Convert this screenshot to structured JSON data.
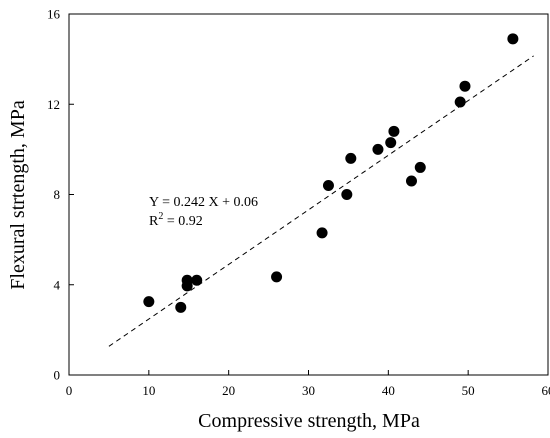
{
  "chart_data": {
    "type": "scatter",
    "title": "",
    "xlabel": "Compressive strength, MPa",
    "ylabel": "Flexural strtength, MPa",
    "xlim": [
      0,
      60
    ],
    "ylim": [
      0,
      16
    ],
    "x_ticks": [
      "0",
      "10",
      "20",
      "30",
      "40",
      "50",
      "60"
    ],
    "y_ticks": [
      "0",
      "4",
      "8",
      "12",
      "16"
    ],
    "grid": false,
    "series": [
      {
        "points": [
          {
            "x": 10.0,
            "y": 3.25
          },
          {
            "x": 14.0,
            "y": 3.0
          },
          {
            "x": 14.8,
            "y": 4.2
          },
          {
            "x": 14.8,
            "y": 3.95
          },
          {
            "x": 16.0,
            "y": 4.2
          },
          {
            "x": 26.0,
            "y": 4.35
          },
          {
            "x": 31.7,
            "y": 6.3
          },
          {
            "x": 32.5,
            "y": 8.4
          },
          {
            "x": 34.8,
            "y": 8.0
          },
          {
            "x": 35.3,
            "y": 9.6
          },
          {
            "x": 38.7,
            "y": 10.0
          },
          {
            "x": 40.3,
            "y": 10.3
          },
          {
            "x": 40.7,
            "y": 10.8
          },
          {
            "x": 42.9,
            "y": 8.6
          },
          {
            "x": 44.0,
            "y": 9.2
          },
          {
            "x": 49.0,
            "y": 12.1
          },
          {
            "x": 49.6,
            "y": 12.8
          },
          {
            "x": 55.6,
            "y": 14.9
          }
        ]
      }
    ],
    "trendline": {
      "slope": 0.242,
      "intercept": 0.06,
      "x_start": 5,
      "x_end": 58.2,
      "style": "dashed"
    },
    "annotations": {
      "equation": "Y = 0.242 X + 0.06",
      "r2_prefix": "R",
      "r2_sup": "2",
      "r2_suffix": " = 0.92"
    }
  }
}
